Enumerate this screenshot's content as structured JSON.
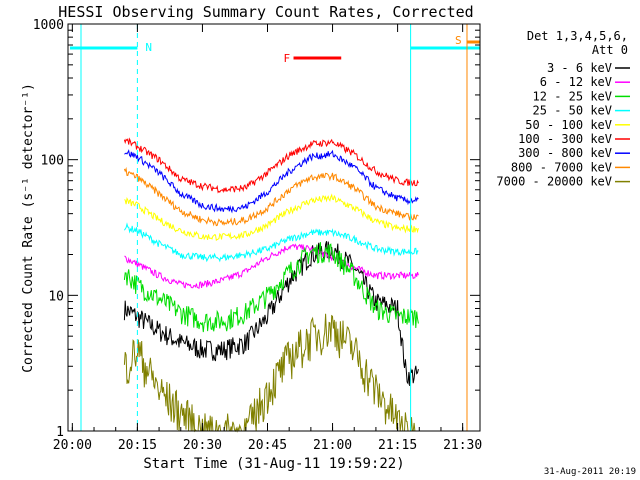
{
  "chart_data": {
    "type": "line",
    "title": "HESSI Observing Summary Count Rates, Corrected",
    "xlabel": "Start Time (31-Aug-11 19:59:22)",
    "ylabel": "Corrected Count Rate (s⁻¹ detector⁻¹)",
    "yscale": "log",
    "xlim_minutes": [
      0,
      95
    ],
    "ylim": [
      1,
      1000
    ],
    "x_ticks": [
      "20:00",
      "20:15",
      "20:30",
      "20:45",
      "21:00",
      "21:15",
      "21:30"
    ],
    "y_ticks": [
      "1",
      "10",
      "100",
      "1000"
    ],
    "legend": {
      "header": [
        "Det 1,3,4,5,6,",
        "Att 0"
      ],
      "placement": "right-outside"
    },
    "time_points": [
      "20:12",
      "20:15",
      "20:20",
      "20:25",
      "20:30",
      "20:35",
      "20:40",
      "20:45",
      "20:50",
      "20:55",
      "21:00",
      "21:05",
      "21:10",
      "21:15",
      "21:17",
      "21:20"
    ],
    "series": [
      {
        "name": "3 - 6 keV",
        "color": "#000000",
        "values": [
          8,
          7,
          5.5,
          4.5,
          4,
          4,
          4.5,
          7,
          13,
          20,
          22,
          16,
          9,
          8,
          2.6,
          2.6
        ]
      },
      {
        "name": "6 - 12 keV",
        "color": "#ff00ff",
        "values": [
          19,
          17,
          14,
          12,
          12,
          13,
          15,
          19,
          23,
          22,
          19,
          16,
          14,
          14,
          14,
          14
        ]
      },
      {
        "name": "12 - 25 keV",
        "color": "#00dd00",
        "values": [
          15,
          12,
          9.5,
          7.5,
          6.5,
          6.5,
          7.5,
          10,
          15,
          21,
          21,
          14,
          8,
          7,
          7,
          7
        ]
      },
      {
        "name": "25 - 50 keV",
        "color": "#00ffff",
        "values": [
          32,
          30,
          24,
          20,
          19,
          19,
          20,
          22,
          26,
          29,
          29,
          26,
          22,
          21,
          21,
          21
        ]
      },
      {
        "name": "50 - 100 keV",
        "color": "#ffff00",
        "values": [
          50,
          46,
          36,
          30,
          27,
          27,
          28,
          33,
          42,
          50,
          52,
          44,
          35,
          31,
          31,
          31
        ]
      },
      {
        "name": "100 - 300 keV",
        "color": "#ff0000",
        "values": [
          140,
          125,
          100,
          72,
          64,
          60,
          62,
          80,
          108,
          130,
          135,
          110,
          82,
          70,
          68,
          68
        ]
      },
      {
        "name": "300 - 800 keV",
        "color": "#0000ff",
        "values": [
          115,
          105,
          80,
          56,
          46,
          43,
          45,
          58,
          82,
          105,
          110,
          88,
          62,
          52,
          50,
          50
        ]
      },
      {
        "name": "800 - 7000 keV",
        "color": "#ff8800",
        "values": [
          82,
          74,
          56,
          42,
          36,
          34,
          36,
          44,
          60,
          74,
          76,
          62,
          45,
          40,
          38,
          38
        ]
      },
      {
        "name": "7000 - 20000 keV",
        "color": "#808000",
        "values": [
          3,
          4,
          2,
          1.4,
          1,
          1,
          1,
          2,
          3.5,
          5,
          6,
          4,
          2,
          1.2,
          1,
          1
        ]
      }
    ],
    "annotations": [
      {
        "label": "N",
        "color": "#00ffff"
      },
      {
        "label": "F",
        "color": "#ff0000"
      },
      {
        "label": "S",
        "color": "#ff8800"
      }
    ],
    "footer_date": "31-Aug-2011 20:19"
  },
  "plot_colors": {
    "axes": "#000000",
    "background": "#ffffff",
    "night_marker": "#00ffff",
    "saa_marker": "#ff8800",
    "flare_marker": "#ff0000"
  }
}
